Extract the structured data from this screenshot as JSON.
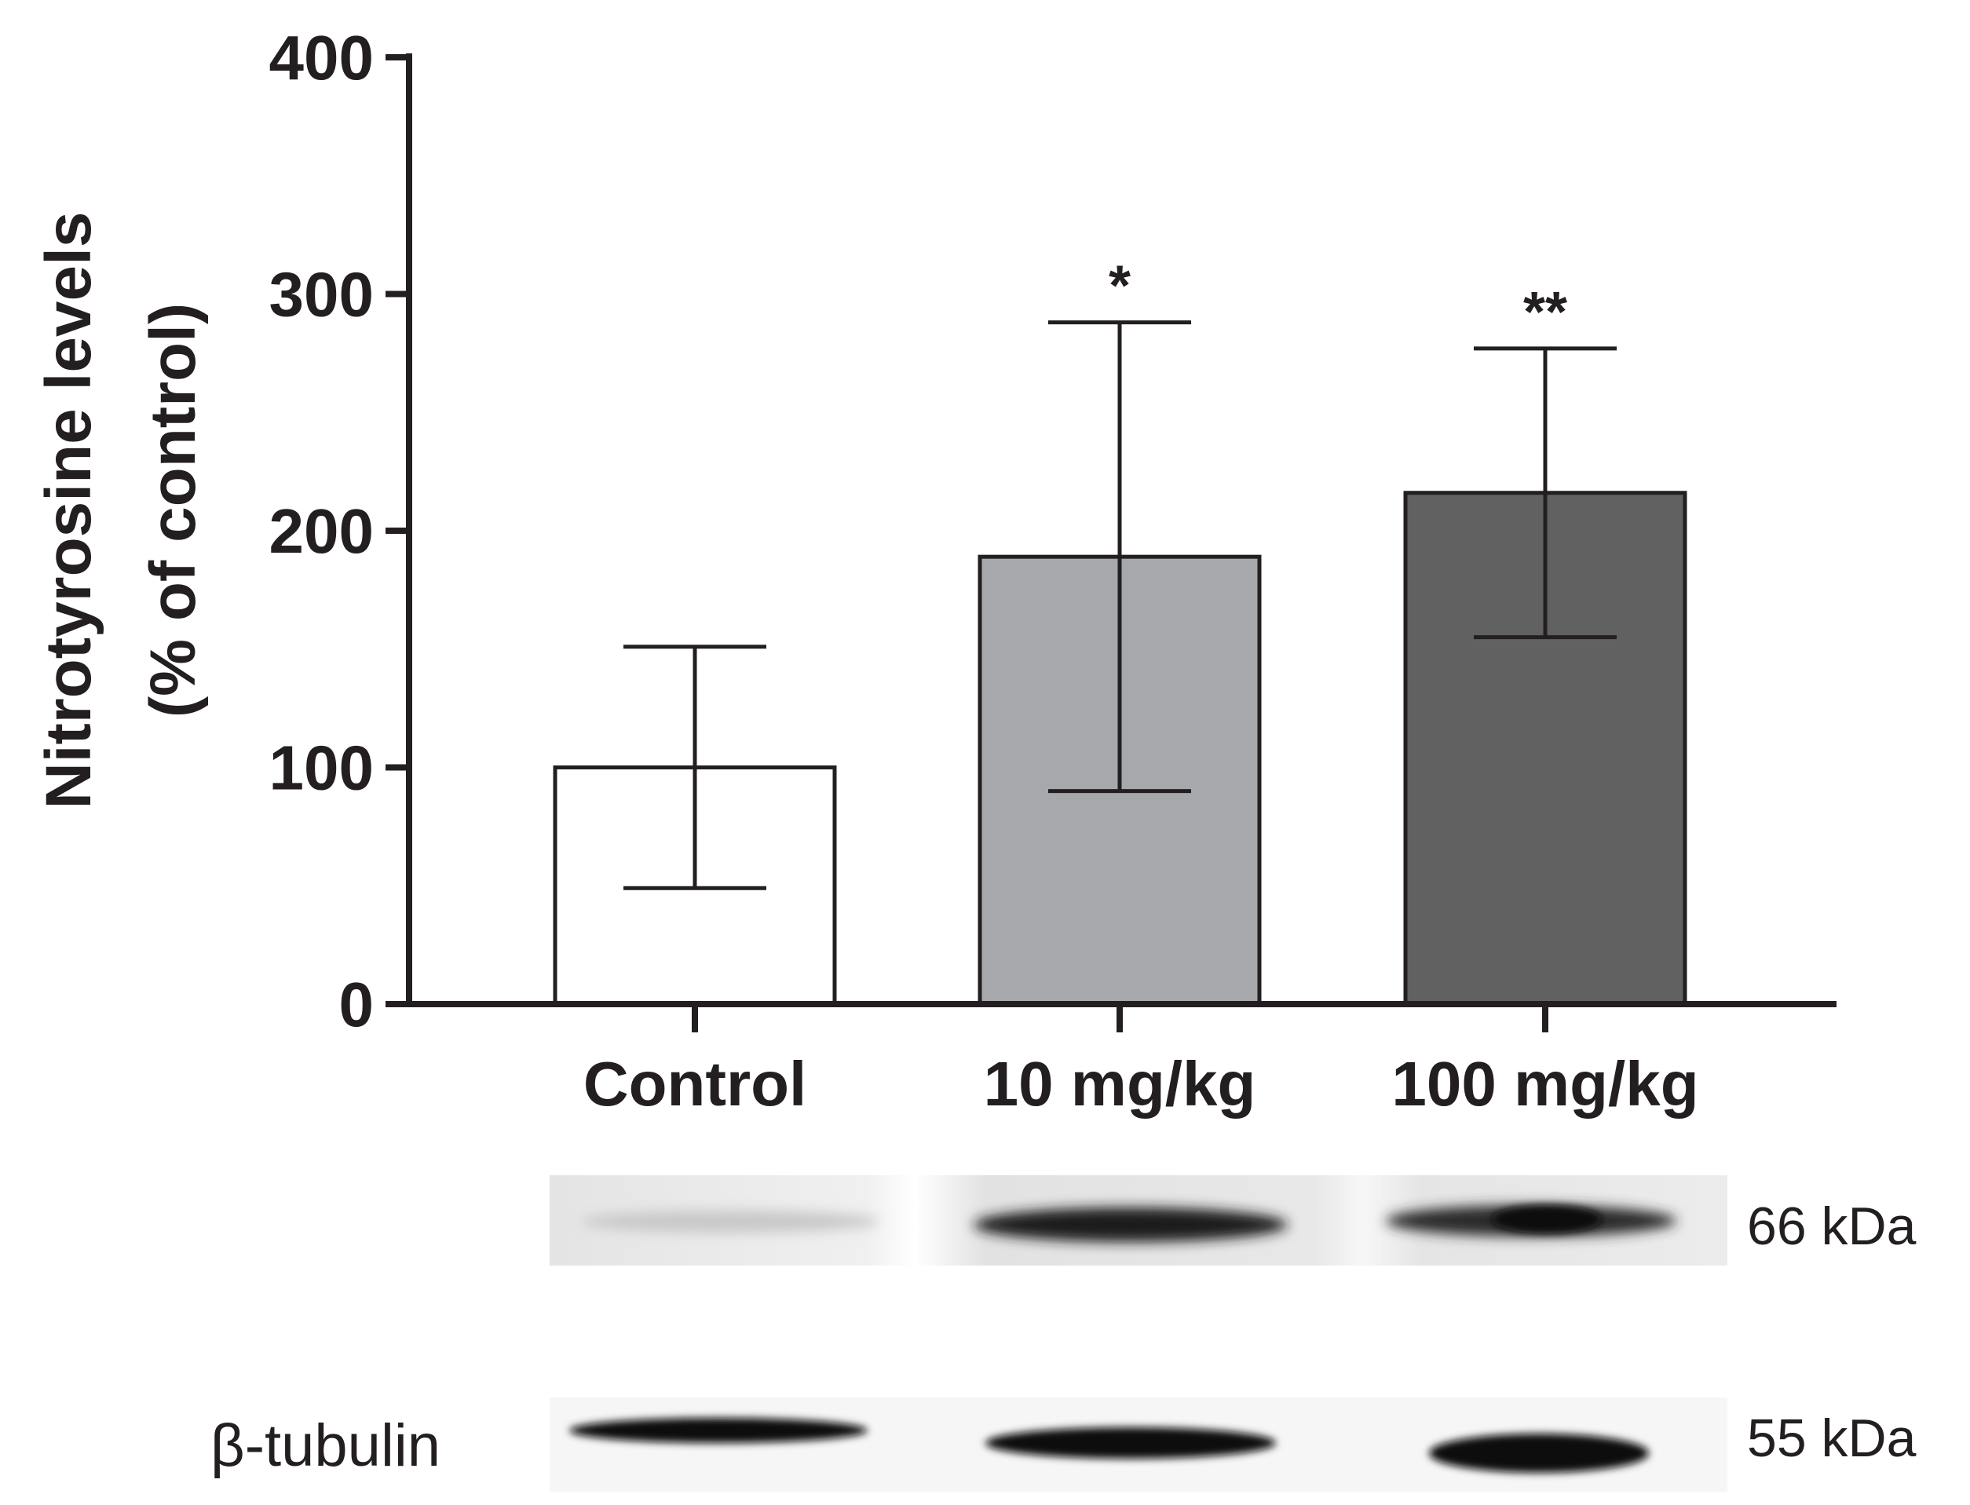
{
  "chart_data": {
    "type": "bar",
    "title": "",
    "xlabel": "",
    "ylabel_lines": [
      "Nitrotyrosine levels",
      "(% of control)"
    ],
    "ylim": [
      0,
      400
    ],
    "yticks": [
      0,
      100,
      200,
      300,
      400
    ],
    "categories": [
      "Control",
      "10 mg/kg",
      "100 mg/kg"
    ],
    "values": [
      100,
      189,
      216
    ],
    "errors": [
      51,
      99,
      61
    ],
    "significance": [
      "",
      "*",
      "**"
    ],
    "colors": [
      "#ffffff",
      "#a6a8ab",
      "#616161"
    ],
    "grid": false
  },
  "blot": {
    "upper_label": "",
    "upper_size": "66 kDa",
    "lower_label": "β-tubulin",
    "lower_size": "55 kDa"
  }
}
